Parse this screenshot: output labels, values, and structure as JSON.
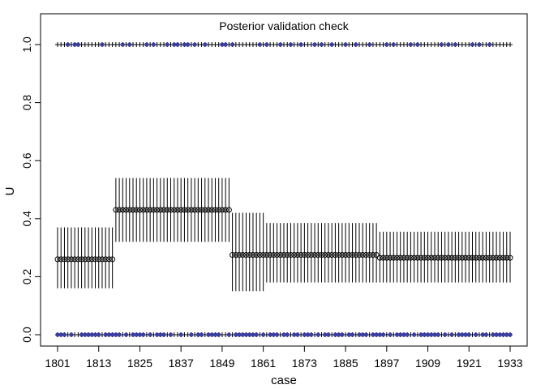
{
  "chart_data": {
    "type": "scatter",
    "title": "Posterior validation check",
    "xlabel": "case",
    "ylabel": "U",
    "xlim": [
      1801,
      1933
    ],
    "ylim": [
      0,
      1
    ],
    "x_ticks": [
      1801,
      1813,
      1825,
      1837,
      1849,
      1861,
      1873,
      1885,
      1897,
      1909,
      1921,
      1933
    ],
    "y_ticks": [
      "0.0",
      "0.2",
      "0.4",
      "0.6",
      "0.8",
      "1.0"
    ],
    "grid": false,
    "legend": "none",
    "colors": {
      "marker": "#000000",
      "highlight": "#3b3fa0"
    },
    "segments": [
      {
        "from": 1801,
        "to": 1817,
        "mean": 0.26,
        "lower": 0.16,
        "upper": 0.37
      },
      {
        "from": 1818,
        "to": 1851,
        "mean": 0.43,
        "lower": 0.32,
        "upper": 0.54
      },
      {
        "from": 1852,
        "to": 1861,
        "mean": 0.275,
        "lower": 0.15,
        "upper": 0.42
      },
      {
        "from": 1862,
        "to": 1894,
        "mean": 0.275,
        "lower": 0.18,
        "upper": 0.385
      },
      {
        "from": 1895,
        "to": 1933,
        "mean": 0.265,
        "lower": 0.18,
        "upper": 0.355
      }
    ],
    "u_one_highlight_cases": [
      1804,
      1806,
      1807,
      1814,
      1820,
      1822,
      1827,
      1829,
      1833,
      1835,
      1836,
      1838,
      1839,
      1841,
      1844,
      1849,
      1850,
      1852,
      1860,
      1862,
      1866,
      1869,
      1872,
      1876,
      1878,
      1881,
      1885,
      1888,
      1892,
      1897,
      1899,
      1904,
      1906,
      1913,
      1915,
      1917,
      1922,
      1924,
      1927
    ]
  }
}
